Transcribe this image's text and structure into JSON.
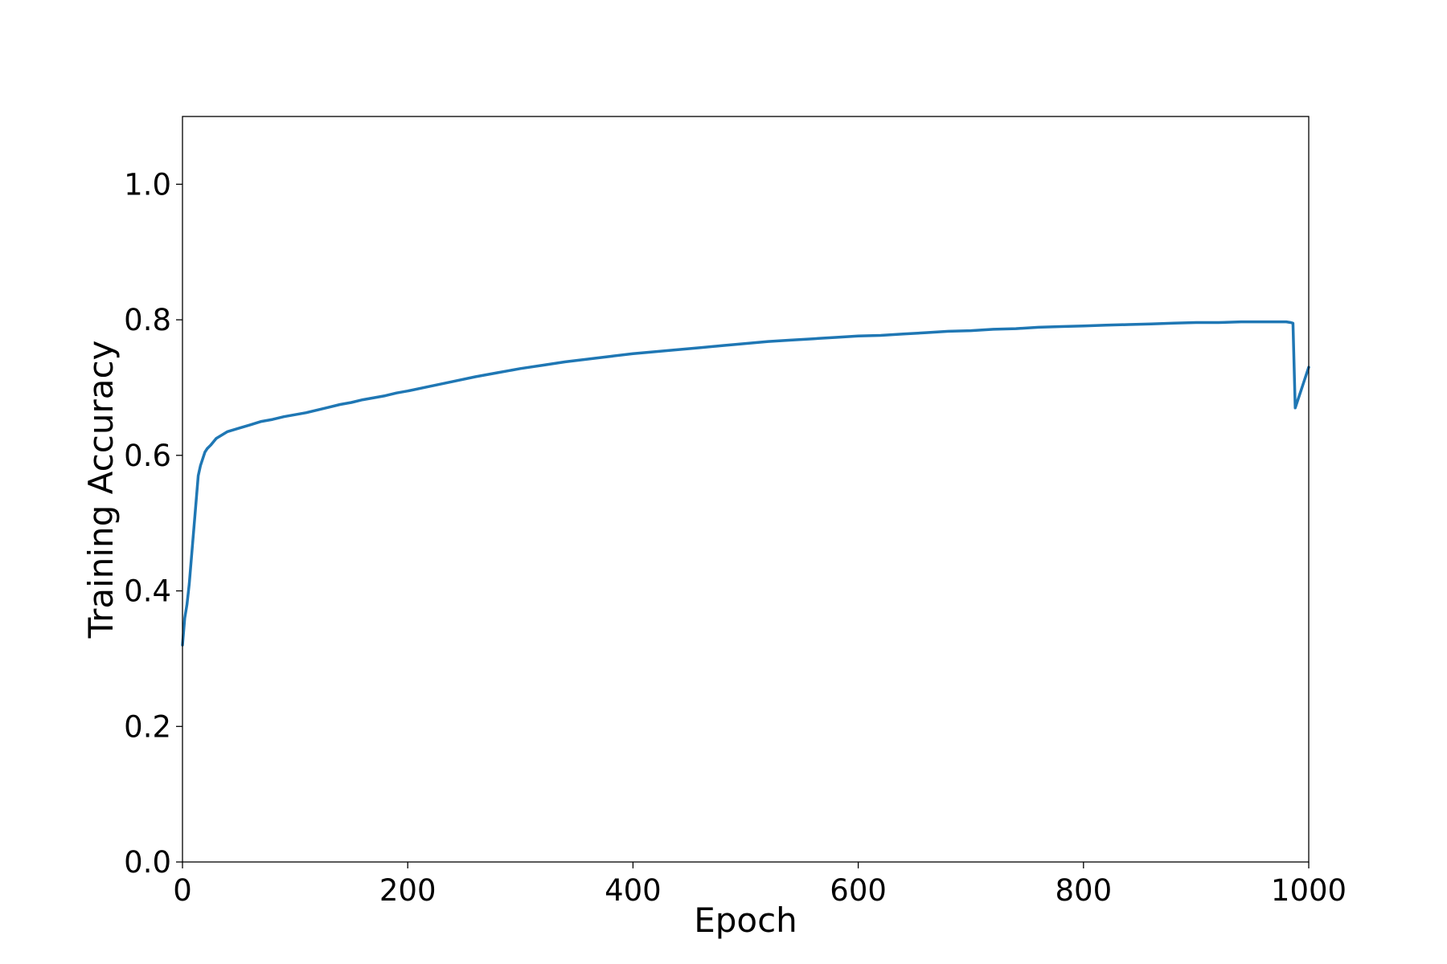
{
  "chart_data": {
    "type": "line",
    "title": "",
    "xlabel": "Epoch",
    "ylabel": "Training Accuracy",
    "xlim": [
      0,
      1000
    ],
    "ylim": [
      0.0,
      1.1
    ],
    "xticks": [
      0,
      200,
      400,
      600,
      800,
      1000
    ],
    "xtick_labels": [
      "0",
      "200",
      "400",
      "600",
      "800",
      "1000"
    ],
    "yticks": [
      0.0,
      0.2,
      0.4,
      0.6,
      0.8,
      1.0
    ],
    "ytick_labels": [
      "0.0",
      "0.2",
      "0.4",
      "0.6",
      "0.8",
      "1.0"
    ],
    "grid": false,
    "line_color": "#1f77b4",
    "series": [
      {
        "x": [
          0,
          2,
          4,
          6,
          8,
          10,
          12,
          14,
          16,
          18,
          20,
          22,
          25,
          30,
          35,
          40,
          50,
          60,
          70,
          80,
          90,
          100,
          110,
          120,
          130,
          140,
          150,
          160,
          170,
          180,
          190,
          200,
          220,
          240,
          260,
          280,
          300,
          320,
          340,
          360,
          380,
          400,
          420,
          440,
          460,
          480,
          500,
          520,
          540,
          560,
          580,
          600,
          620,
          640,
          660,
          680,
          700,
          720,
          740,
          760,
          780,
          800,
          820,
          840,
          860,
          880,
          900,
          920,
          940,
          960,
          980,
          984,
          986,
          988,
          990,
          992,
          994,
          996,
          998,
          1000
        ],
        "y": [
          0.32,
          0.36,
          0.38,
          0.41,
          0.45,
          0.49,
          0.53,
          0.57,
          0.585,
          0.595,
          0.605,
          0.61,
          0.615,
          0.625,
          0.63,
          0.635,
          0.64,
          0.645,
          0.65,
          0.653,
          0.657,
          0.66,
          0.663,
          0.667,
          0.671,
          0.675,
          0.678,
          0.682,
          0.685,
          0.688,
          0.692,
          0.695,
          0.702,
          0.709,
          0.716,
          0.722,
          0.728,
          0.733,
          0.738,
          0.742,
          0.746,
          0.75,
          0.753,
          0.756,
          0.759,
          0.762,
          0.765,
          0.768,
          0.77,
          0.772,
          0.774,
          0.776,
          0.777,
          0.779,
          0.781,
          0.783,
          0.784,
          0.786,
          0.787,
          0.789,
          0.79,
          0.791,
          0.792,
          0.793,
          0.794,
          0.795,
          0.796,
          0.796,
          0.797,
          0.797,
          0.797,
          0.796,
          0.795,
          0.67,
          0.68,
          0.69,
          0.7,
          0.71,
          0.72,
          0.73
        ]
      }
    ]
  }
}
